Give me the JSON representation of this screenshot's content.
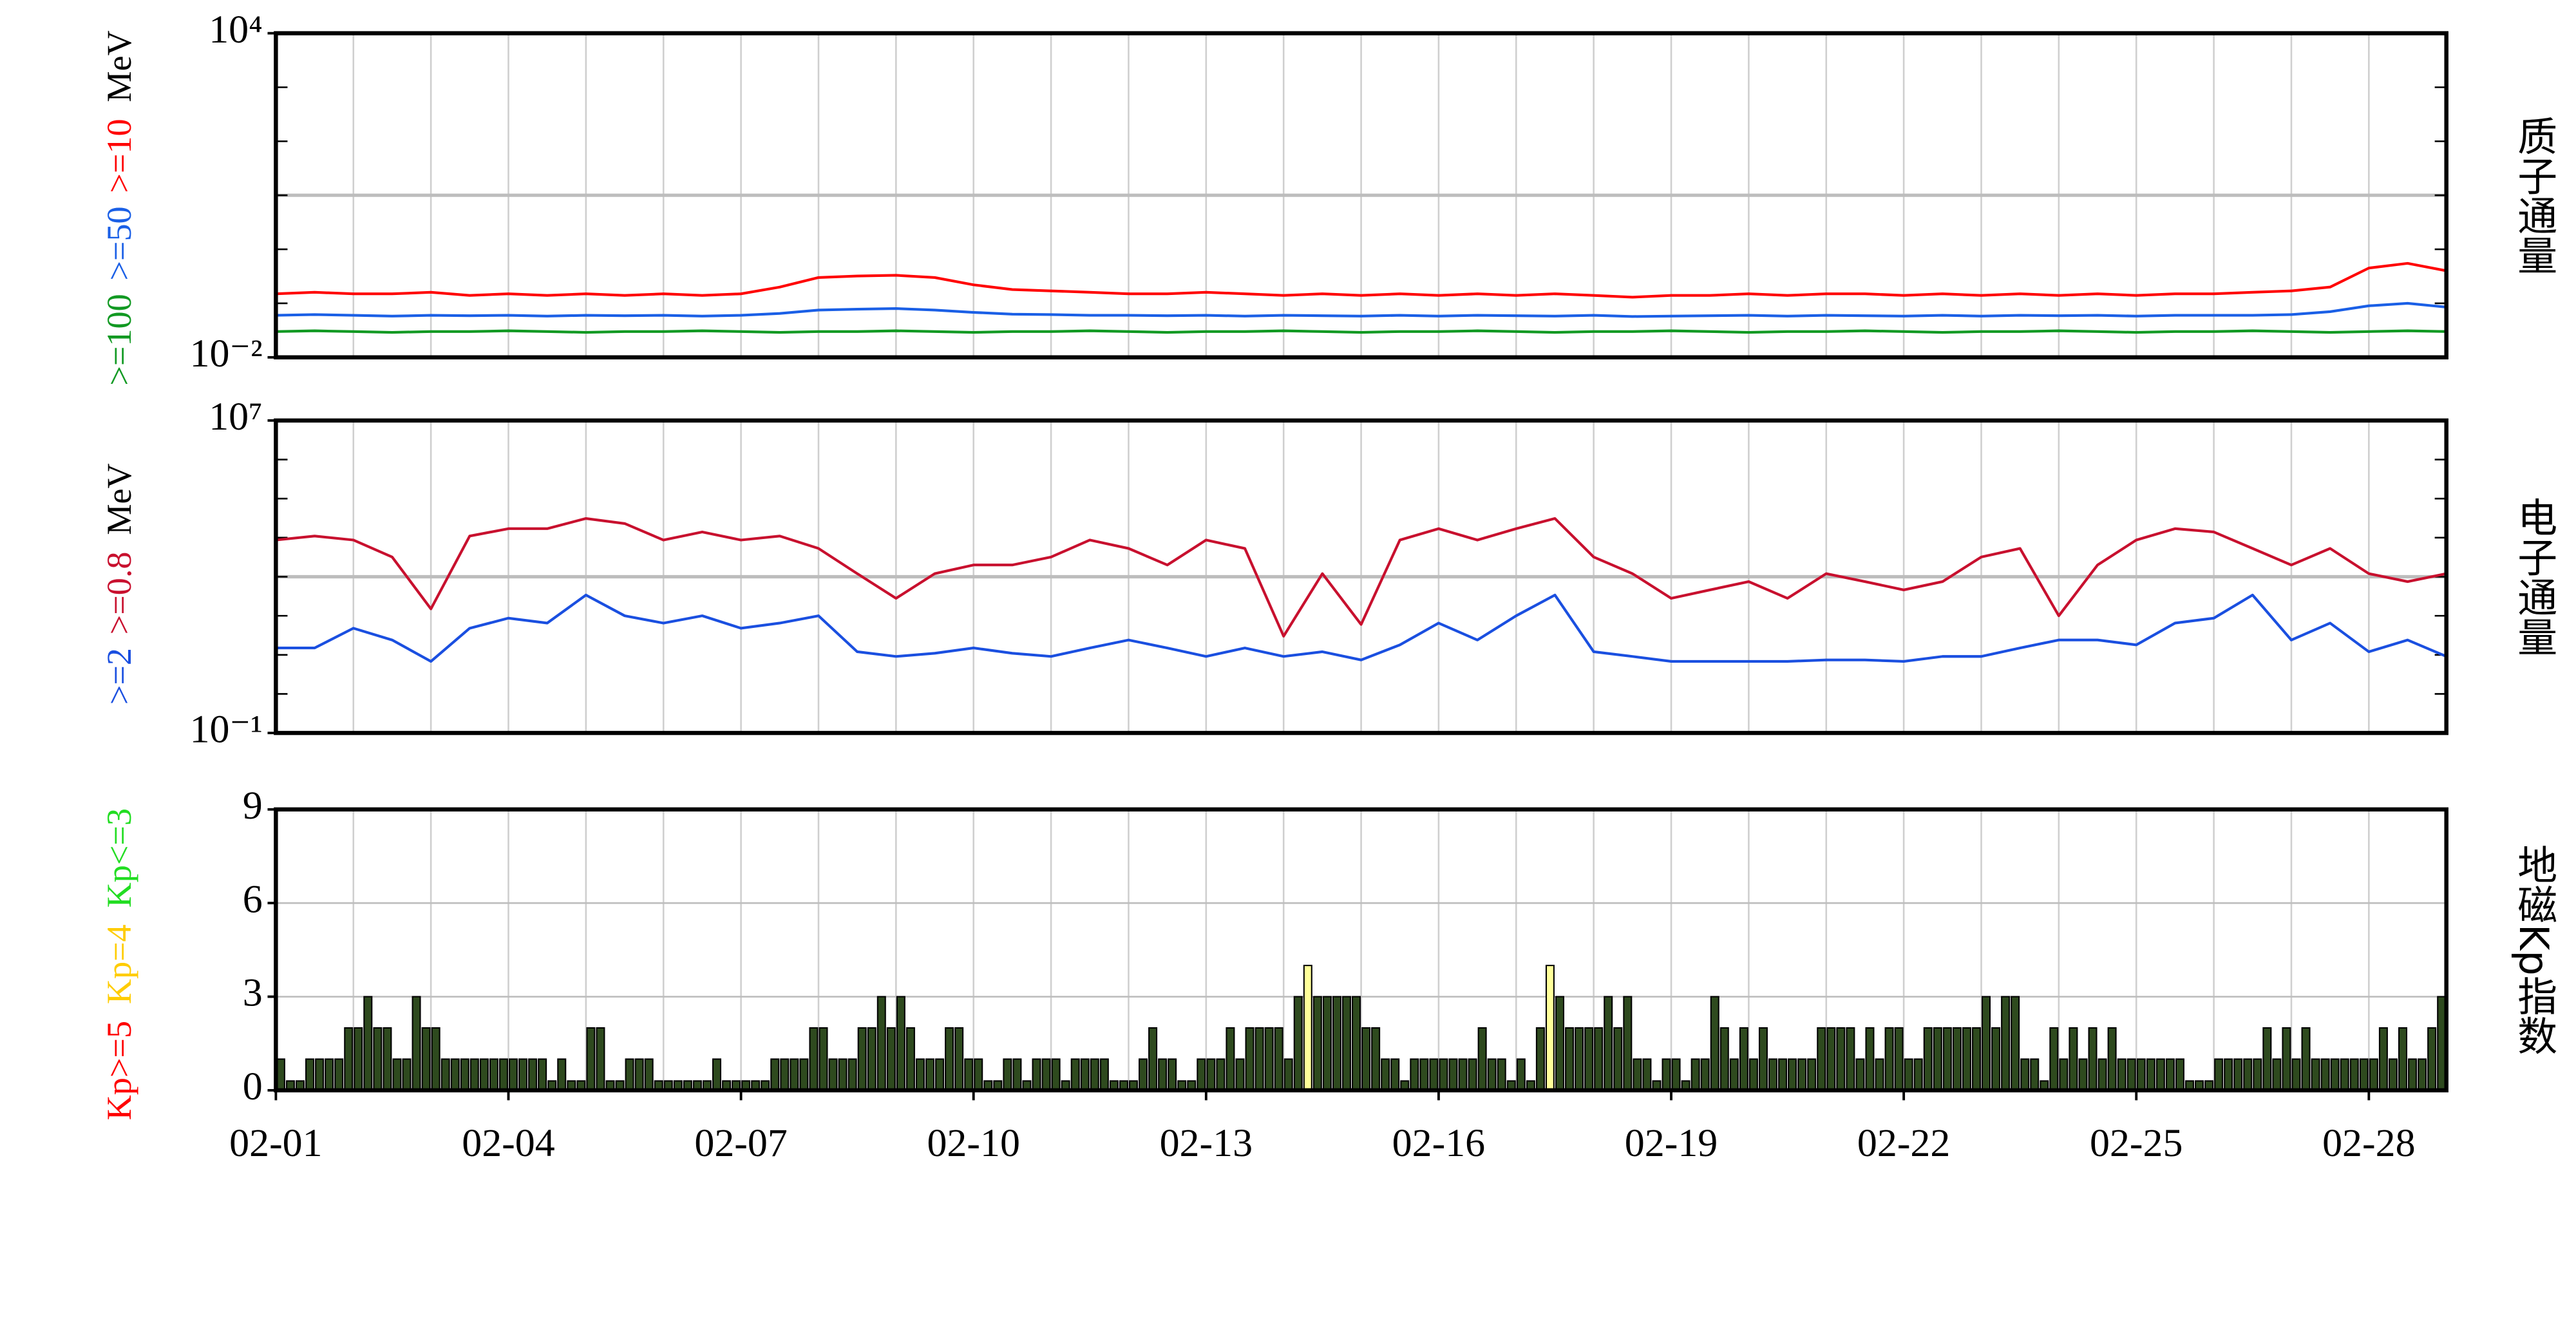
{
  "chart_data": [
    {
      "type": "line",
      "log_scale": true,
      "title": "质子通量",
      "unit": "MeV",
      "x": [
        0,
        0.5,
        1,
        1.5,
        2,
        2.5,
        3,
        3.5,
        4,
        4.5,
        5,
        5.5,
        6,
        6.5,
        7,
        7.5,
        8,
        8.5,
        9,
        9.5,
        10,
        10.5,
        11,
        11.5,
        12,
        12.5,
        13,
        13.5,
        14,
        14.5,
        15,
        15.5,
        16,
        16.5,
        17,
        17.5,
        18,
        18.5,
        19,
        19.5,
        20,
        20.5,
        21,
        21.5,
        22,
        22.5,
        23,
        23.5,
        24,
        24.5,
        25,
        25.5,
        26,
        26.5,
        27,
        27.5,
        28
      ],
      "xlim": [
        0,
        28
      ],
      "x_grid_step": 1,
      "ylim": [
        0.01,
        10000
      ],
      "yticks": [
        {
          "value": 0.01,
          "label": "10⁻²"
        },
        {
          "value": 10000,
          "label": "10⁴"
        }
      ],
      "yminor_ticks": [
        0.1,
        1,
        10,
        100,
        1000
      ],
      "ygrid": [
        10
      ],
      "series": [
        {
          "name": ">=10",
          "color": "#ff0000",
          "values": [
            0.15,
            0.16,
            0.15,
            0.15,
            0.16,
            0.14,
            0.15,
            0.14,
            0.15,
            0.14,
            0.15,
            0.14,
            0.15,
            0.2,
            0.3,
            0.32,
            0.33,
            0.3,
            0.22,
            0.18,
            0.17,
            0.16,
            0.15,
            0.15,
            0.16,
            0.15,
            0.14,
            0.15,
            0.14,
            0.15,
            0.14,
            0.15,
            0.14,
            0.15,
            0.14,
            0.13,
            0.14,
            0.14,
            0.15,
            0.14,
            0.15,
            0.15,
            0.14,
            0.15,
            0.14,
            0.15,
            0.14,
            0.15,
            0.14,
            0.15,
            0.15,
            0.16,
            0.17,
            0.2,
            0.45,
            0.55,
            0.4
          ]
        },
        {
          "name": ">=50",
          "color": "#1a5fe6",
          "values": [
            0.06,
            0.062,
            0.06,
            0.058,
            0.06,
            0.059,
            0.06,
            0.058,
            0.06,
            0.059,
            0.06,
            0.058,
            0.06,
            0.065,
            0.075,
            0.078,
            0.08,
            0.075,
            0.068,
            0.063,
            0.062,
            0.06,
            0.06,
            0.059,
            0.06,
            0.058,
            0.06,
            0.059,
            0.058,
            0.06,
            0.058,
            0.06,
            0.059,
            0.058,
            0.06,
            0.057,
            0.058,
            0.059,
            0.06,
            0.058,
            0.06,
            0.059,
            0.058,
            0.06,
            0.058,
            0.06,
            0.059,
            0.06,
            0.058,
            0.06,
            0.06,
            0.06,
            0.062,
            0.07,
            0.09,
            0.1,
            0.085
          ]
        },
        {
          "name": ">=100",
          "color": "#119922",
          "values": [
            0.03,
            0.031,
            0.03,
            0.029,
            0.03,
            0.03,
            0.031,
            0.03,
            0.029,
            0.03,
            0.03,
            0.031,
            0.03,
            0.029,
            0.03,
            0.03,
            0.031,
            0.03,
            0.029,
            0.03,
            0.03,
            0.031,
            0.03,
            0.029,
            0.03,
            0.03,
            0.031,
            0.03,
            0.029,
            0.03,
            0.03,
            0.031,
            0.03,
            0.029,
            0.03,
            0.03,
            0.031,
            0.03,
            0.029,
            0.03,
            0.03,
            0.031,
            0.03,
            0.029,
            0.03,
            0.03,
            0.031,
            0.03,
            0.029,
            0.03,
            0.03,
            0.031,
            0.03,
            0.029,
            0.03,
            0.031,
            0.03
          ]
        }
      ]
    },
    {
      "type": "line",
      "log_scale": true,
      "title": "电子通量",
      "unit": "MeV",
      "x": [
        0,
        0.5,
        1,
        1.5,
        2,
        2.5,
        3,
        3.5,
        4,
        4.5,
        5,
        5.5,
        6,
        6.5,
        7,
        7.5,
        8,
        8.5,
        9,
        9.5,
        10,
        10.5,
        11,
        11.5,
        12,
        12.5,
        13,
        13.5,
        14,
        14.5,
        15,
        15.5,
        16,
        16.5,
        17,
        17.5,
        18,
        18.5,
        19,
        19.5,
        20,
        20.5,
        21,
        21.5,
        22,
        22.5,
        23,
        23.5,
        24,
        24.5,
        25,
        25.5,
        26,
        26.5,
        27,
        27.5,
        28
      ],
      "xlim": [
        0,
        28
      ],
      "x_grid_step": 1,
      "ylim": [
        0.1,
        10000000
      ],
      "yticks": [
        {
          "value": 0.1,
          "label": "10⁻¹"
        },
        {
          "value": 10000000,
          "label": "10⁷"
        }
      ],
      "yminor_ticks": [
        1,
        10,
        100,
        1000,
        10000,
        100000,
        1000000
      ],
      "ygrid": [
        1000
      ],
      "series": [
        {
          "name": ">=0.8",
          "color": "#c8102e",
          "values": [
            8700,
            11000,
            8700,
            3200,
            150,
            11000,
            17000,
            17000,
            31000,
            23000,
            8700,
            14000,
            8700,
            11000,
            5300,
            1200,
            280,
            1200,
            2000,
            2000,
            3200,
            8700,
            5300,
            2000,
            8700,
            5300,
            30,
            1200,
            60,
            8700,
            17000,
            8700,
            17000,
            31000,
            3200,
            1200,
            280,
            460,
            750,
            280,
            1200,
            750,
            460,
            750,
            3200,
            5300,
            100,
            2000,
            8700,
            17000,
            14000,
            5300,
            2000,
            5300,
            1200,
            750,
            1200
          ]
        },
        {
          "name": ">=2",
          "color": "#1a4fe0",
          "values": [
            15,
            15,
            48,
            24,
            6.8,
            48,
            87,
            65,
            340,
            100,
            65,
            100,
            48,
            65,
            100,
            12,
            9.1,
            11,
            15,
            11,
            9.1,
            15,
            24,
            15,
            9.1,
            15,
            9.1,
            12,
            7.4,
            18,
            65,
            24,
            100,
            340,
            12,
            9.1,
            6.8,
            6.8,
            6.8,
            6.8,
            7.4,
            7.4,
            6.8,
            9.1,
            9.1,
            15,
            24,
            24,
            18,
            65,
            87,
            340,
            24,
            65,
            12,
            24,
            9.1
          ]
        }
      ]
    },
    {
      "type": "bar",
      "title": "地磁Kp指数",
      "xlim": [
        0,
        28
      ],
      "x_grid_step": 1,
      "bar_width": 0.125,
      "xticks": [
        {
          "value": 0,
          "label": "02-01"
        },
        {
          "value": 3,
          "label": "02-04"
        },
        {
          "value": 6,
          "label": "02-07"
        },
        {
          "value": 9,
          "label": "02-10"
        },
        {
          "value": 12,
          "label": "02-13"
        },
        {
          "value": 15,
          "label": "02-16"
        },
        {
          "value": 18,
          "label": "02-19"
        },
        {
          "value": 21,
          "label": "02-22"
        },
        {
          "value": 24,
          "label": "02-25"
        },
        {
          "value": 27,
          "label": "02-28"
        }
      ],
      "ylim": [
        0,
        9
      ],
      "yticks": [
        0,
        3,
        6,
        9
      ],
      "ygrid": [
        3,
        6
      ],
      "levels": [
        {
          "name": "Kp>=5",
          "color": "#ff0000",
          "fill": "#ff3030",
          "from": 5
        },
        {
          "name": "Kp=4",
          "color": "#ffcc00",
          "fill": "#ffff99",
          "from": 4
        },
        {
          "name": "Kp<=3",
          "color": "#22dd22",
          "fill": "#2e4a1e",
          "from": 0
        }
      ],
      "x": [
        0,
        0.125,
        0.25,
        0.375,
        0.5,
        0.625,
        0.75,
        0.875,
        1,
        1.125,
        1.25,
        1.375,
        1.5,
        1.625,
        1.75,
        1.875,
        2,
        2.125,
        2.25,
        2.375,
        2.5,
        2.625,
        2.75,
        2.875,
        3,
        3.125,
        3.25,
        3.375,
        3.5,
        3.625,
        3.75,
        3.875,
        4,
        4.125,
        4.25,
        4.375,
        4.5,
        4.625,
        4.75,
        4.875,
        5,
        5.125,
        5.25,
        5.375,
        5.5,
        5.625,
        5.75,
        5.875,
        6,
        6.125,
        6.25,
        6.375,
        6.5,
        6.625,
        6.75,
        6.875,
        7,
        7.125,
        7.25,
        7.375,
        7.5,
        7.625,
        7.75,
        7.875,
        8,
        8.125,
        8.25,
        8.375,
        8.5,
        8.625,
        8.75,
        8.875,
        9,
        9.125,
        9.25,
        9.375,
        9.5,
        9.625,
        9.75,
        9.875,
        10,
        10.125,
        10.25,
        10.375,
        10.5,
        10.625,
        10.75,
        10.875,
        11,
        11.125,
        11.25,
        11.375,
        11.5,
        11.625,
        11.75,
        11.875,
        12,
        12.125,
        12.25,
        12.375,
        12.5,
        12.625,
        12.75,
        12.875,
        13,
        13.125,
        13.25,
        13.375,
        13.5,
        13.625,
        13.75,
        13.875,
        14,
        14.125,
        14.25,
        14.375,
        14.5,
        14.625,
        14.75,
        14.875,
        15,
        15.125,
        15.25,
        15.375,
        15.5,
        15.625,
        15.75,
        15.875,
        16,
        16.125,
        16.25,
        16.375,
        16.5,
        16.625,
        16.75,
        16.875,
        17,
        17.125,
        17.25,
        17.375,
        17.5,
        17.625,
        17.75,
        17.875,
        18,
        18.125,
        18.25,
        18.375,
        18.5,
        18.625,
        18.75,
        18.875,
        19,
        19.125,
        19.25,
        19.375,
        19.5,
        19.625,
        19.75,
        19.875,
        20,
        20.125,
        20.25,
        20.375,
        20.5,
        20.625,
        20.75,
        20.875,
        21,
        21.125,
        21.25,
        21.375,
        21.5,
        21.625,
        21.75,
        21.875,
        22,
        22.125,
        22.25,
        22.375,
        22.5,
        22.625,
        22.75,
        22.875,
        23,
        23.125,
        23.25,
        23.375,
        23.5,
        23.625,
        23.75,
        23.875,
        24,
        24.125,
        24.25,
        24.375,
        24.5,
        24.625,
        24.75,
        24.875,
        25,
        25.125,
        25.25,
        25.375,
        25.5,
        25.625,
        25.75,
        25.875,
        26,
        26.125,
        26.25,
        26.375,
        26.5,
        26.625,
        26.75,
        26.875,
        27,
        27.125,
        27.25,
        27.375,
        27.5,
        27.625,
        27.75,
        27.875
      ],
      "values": [
        1,
        0.3,
        0.3,
        1,
        1,
        1,
        1,
        2,
        2,
        3,
        2,
        2,
        1,
        1,
        3,
        2,
        2,
        1,
        1,
        1,
        1,
        1,
        1,
        1,
        1,
        1,
        1,
        1,
        0.3,
        1,
        0.3,
        0.3,
        2,
        2,
        0.3,
        0.3,
        1,
        1,
        1,
        0.3,
        0.3,
        0.3,
        0.3,
        0.3,
        0.3,
        1,
        0.3,
        0.3,
        0.3,
        0.3,
        0.3,
        1,
        1,
        1,
        1,
        2,
        2,
        1,
        1,
        1,
        2,
        2,
        3,
        2,
        3,
        2,
        1,
        1,
        1,
        2,
        2,
        1,
        1,
        0.3,
        0.3,
        1,
        1,
        0.3,
        1,
        1,
        1,
        0.3,
        1,
        1,
        1,
        1,
        0.3,
        0.3,
        0.3,
        1,
        2,
        1,
        1,
        0.3,
        0.3,
        1,
        1,
        1,
        2,
        1,
        2,
        2,
        2,
        2,
        1,
        3,
        4,
        3,
        3,
        3,
        3,
        3,
        2,
        2,
        1,
        1,
        0.3,
        1,
        1,
        1,
        1,
        1,
        1,
        1,
        2,
        1,
        1,
        0.3,
        1,
        0.3,
        2,
        4,
        3,
        2,
        2,
        2,
        2,
        3,
        2,
        3,
        1,
        1,
        0.3,
        1,
        1,
        0.3,
        1,
        1,
        3,
        2,
        1,
        2,
        1,
        2,
        1,
        1,
        1,
        1,
        1,
        2,
        2,
        2,
        2,
        1,
        2,
        1,
        2,
        2,
        1,
        1,
        2,
        2,
        2,
        2,
        2,
        2,
        3,
        2,
        3,
        3,
        1,
        1,
        0.3,
        2,
        1,
        2,
        1,
        2,
        1,
        2,
        1,
        1,
        1,
        1,
        1,
        1,
        1,
        0.3,
        0.3,
        0.3,
        1,
        1,
        1,
        1,
        1,
        2,
        1,
        2,
        1,
        2,
        1,
        1,
        1,
        1,
        1,
        1,
        1,
        2,
        1,
        2,
        1,
        1,
        2,
        3
      ]
    }
  ]
}
